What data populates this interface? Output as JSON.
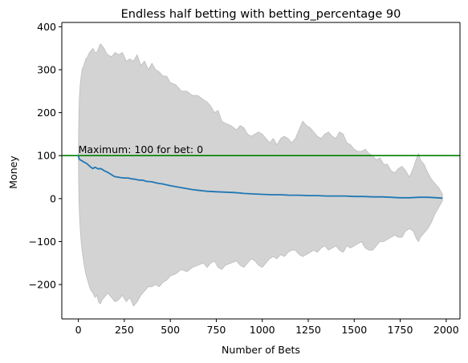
{
  "chart_data": {
    "type": "line",
    "title": "Endless half betting with betting_percentage 90",
    "xlabel": "Number of Bets",
    "ylabel": "Money",
    "xlim": [
      -90,
      2075
    ],
    "ylim": [
      -280,
      410
    ],
    "xticks": [
      0,
      250,
      500,
      750,
      1000,
      1250,
      1500,
      1750,
      2000
    ],
    "yticks": [
      -200,
      -100,
      0,
      100,
      200,
      300,
      400
    ],
    "grid": false,
    "colors": {
      "mean_line": "#1f77b4",
      "band_fill": "#d3d3d3",
      "band_edge": "#bdbdbd",
      "max_line": "#008000"
    },
    "max_line": {
      "y": 100
    },
    "annotation": {
      "text": "Maximum: 100 for bet: 0",
      "x": 0,
      "y": 100
    },
    "series": [
      {
        "kind": "mean",
        "x": [
          0,
          5,
          10,
          20,
          30,
          40,
          50,
          60,
          70,
          80,
          90,
          100,
          110,
          120,
          130,
          140,
          150,
          160,
          175,
          190,
          200,
          215,
          230,
          250,
          270,
          290,
          310,
          330,
          350,
          370,
          400,
          430,
          460,
          500,
          540,
          580,
          620,
          660,
          700,
          750,
          800,
          850,
          900,
          950,
          1000,
          1050,
          1100,
          1150,
          1200,
          1250,
          1300,
          1350,
          1400,
          1450,
          1500,
          1550,
          1600,
          1650,
          1700,
          1750,
          1800,
          1850,
          1900,
          1950,
          1980
        ],
        "y": [
          100,
          92,
          90,
          88,
          85,
          83,
          80,
          76,
          72,
          70,
          73,
          71,
          69,
          70,
          68,
          65,
          63,
          61,
          57,
          53,
          51,
          50,
          49,
          48,
          48,
          46,
          45,
          43,
          43,
          40,
          39,
          36,
          34,
          30,
          27,
          24,
          21,
          19,
          17,
          16,
          15,
          14,
          12,
          11,
          10,
          9,
          9,
          8,
          8,
          7,
          7,
          6,
          6,
          6,
          5,
          5,
          4,
          4,
          3,
          2,
          2,
          3,
          3,
          2,
          1
        ]
      },
      {
        "kind": "band-upper",
        "x": [
          0,
          3,
          6,
          10,
          15,
          20,
          30,
          40,
          50,
          60,
          70,
          80,
          90,
          100,
          110,
          120,
          130,
          140,
          150,
          160,
          180,
          200,
          220,
          240,
          260,
          280,
          300,
          320,
          340,
          360,
          380,
          400,
          420,
          440,
          460,
          480,
          500,
          530,
          560,
          590,
          620,
          650,
          680,
          700,
          720,
          740,
          760,
          780,
          800,
          830,
          860,
          880,
          900,
          920,
          940,
          960,
          980,
          1000,
          1020,
          1040,
          1060,
          1080,
          1100,
          1120,
          1140,
          1160,
          1180,
          1200,
          1220,
          1240,
          1260,
          1280,
          1300,
          1320,
          1340,
          1360,
          1380,
          1400,
          1420,
          1440,
          1460,
          1480,
          1500,
          1520,
          1540,
          1560,
          1580,
          1600,
          1620,
          1640,
          1660,
          1680,
          1700,
          1720,
          1740,
          1760,
          1780,
          1800,
          1820,
          1840,
          1850,
          1860,
          1880,
          1900,
          1920,
          1940,
          1960,
          1980
        ],
        "y": [
          100,
          200,
          240,
          265,
          285,
          300,
          310,
          325,
          330,
          340,
          345,
          350,
          340,
          340,
          350,
          360,
          355,
          350,
          340,
          335,
          330,
          340,
          335,
          340,
          320,
          325,
          320,
          335,
          310,
          320,
          300,
          315,
          300,
          295,
          285,
          285,
          270,
          265,
          250,
          250,
          240,
          240,
          230,
          225,
          215,
          200,
          205,
          180,
          175,
          170,
          160,
          170,
          165,
          150,
          145,
          150,
          155,
          150,
          140,
          130,
          140,
          125,
          140,
          145,
          140,
          130,
          140,
          160,
          180,
          170,
          165,
          155,
          145,
          140,
          150,
          155,
          145,
          140,
          155,
          150,
          130,
          125,
          115,
          110,
          110,
          115,
          105,
          100,
          90,
          95,
          80,
          80,
          65,
          60,
          70,
          75,
          65,
          50,
          70,
          95,
          105,
          90,
          80,
          60,
          45,
          35,
          25,
          10
        ]
      },
      {
        "kind": "band-lower",
        "x": [
          0,
          3,
          6,
          10,
          15,
          20,
          30,
          40,
          50,
          60,
          70,
          80,
          90,
          100,
          110,
          120,
          130,
          140,
          150,
          160,
          180,
          200,
          220,
          240,
          260,
          280,
          300,
          320,
          340,
          360,
          380,
          400,
          420,
          440,
          460,
          480,
          500,
          530,
          560,
          590,
          620,
          650,
          680,
          700,
          720,
          740,
          760,
          780,
          800,
          830,
          860,
          880,
          900,
          920,
          940,
          960,
          980,
          1000,
          1020,
          1040,
          1060,
          1080,
          1100,
          1120,
          1140,
          1160,
          1180,
          1200,
          1220,
          1240,
          1260,
          1280,
          1300,
          1320,
          1340,
          1360,
          1380,
          1400,
          1420,
          1440,
          1460,
          1480,
          1500,
          1520,
          1540,
          1560,
          1580,
          1600,
          1620,
          1640,
          1660,
          1680,
          1700,
          1720,
          1740,
          1760,
          1780,
          1800,
          1820,
          1840,
          1850,
          1860,
          1880,
          1900,
          1920,
          1940,
          1960,
          1980
        ],
        "y": [
          100,
          0,
          -40,
          -70,
          -100,
          -120,
          -150,
          -175,
          -190,
          -205,
          -215,
          -220,
          -230,
          -225,
          -240,
          -245,
          -235,
          -230,
          -225,
          -220,
          -230,
          -240,
          -235,
          -225,
          -240,
          -230,
          -250,
          -240,
          -225,
          -215,
          -205,
          -205,
          -200,
          -205,
          -195,
          -190,
          -180,
          -175,
          -165,
          -170,
          -160,
          -155,
          -150,
          -160,
          -150,
          -145,
          -160,
          -165,
          -155,
          -150,
          -145,
          -155,
          -160,
          -150,
          -140,
          -145,
          -155,
          -160,
          -150,
          -140,
          -135,
          -140,
          -130,
          -135,
          -125,
          -120,
          -120,
          -130,
          -135,
          -130,
          -125,
          -120,
          -125,
          -115,
          -110,
          -120,
          -115,
          -110,
          -120,
          -125,
          -110,
          -115,
          -110,
          -105,
          -100,
          -115,
          -120,
          -120,
          -110,
          -100,
          -100,
          -95,
          -90,
          -85,
          -90,
          -90,
          -75,
          -70,
          -75,
          -95,
          -100,
          -90,
          -80,
          -70,
          -55,
          -35,
          -20,
          -5
        ]
      }
    ]
  }
}
